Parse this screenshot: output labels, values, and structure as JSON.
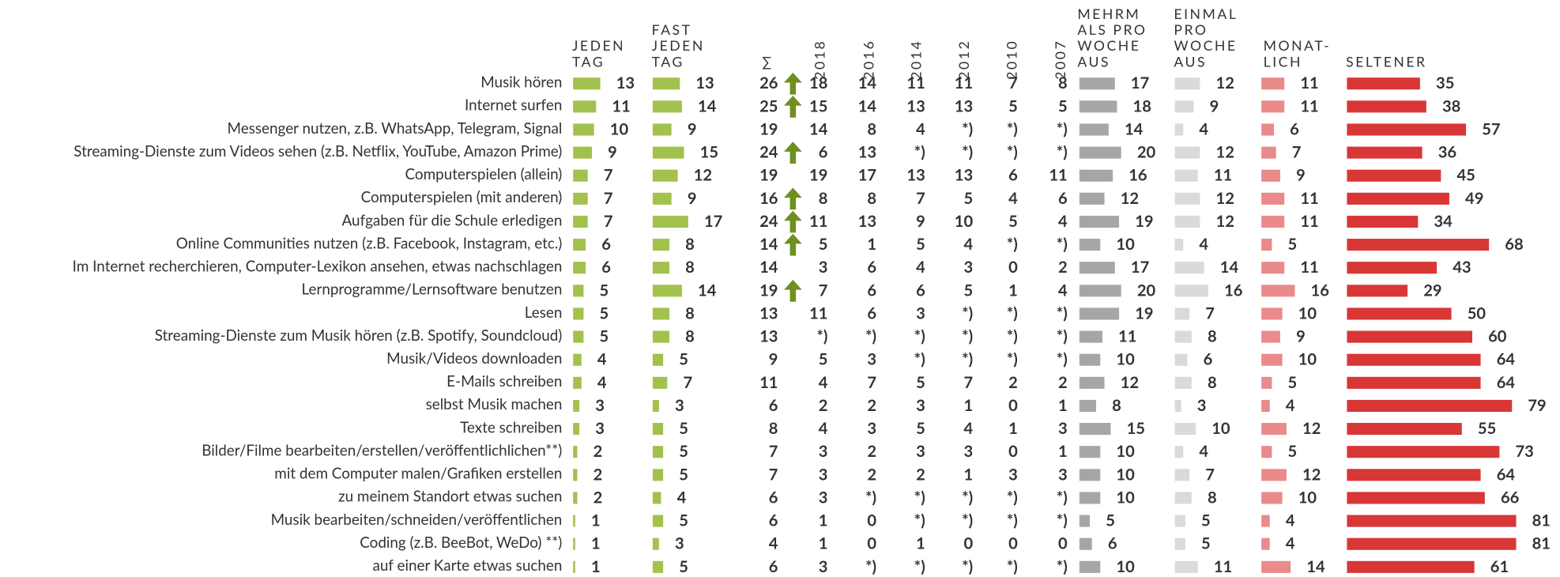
{
  "columns": [
    {
      "label": [
        "JEDEN",
        "TAG"
      ],
      "bar_color": "#a3c14d"
    },
    {
      "label": [
        "FAST",
        "JEDEN",
        "TAG"
      ],
      "bar_color": "#a3c14d"
    },
    {
      "label": [
        "∑"
      ]
    },
    {
      "label": [
        "2018"
      ],
      "vertical": true
    },
    {
      "label": [
        "2016"
      ],
      "vertical": true
    },
    {
      "label": [
        "2014"
      ],
      "vertical": true
    },
    {
      "label": [
        "2012"
      ],
      "vertical": true
    },
    {
      "label": [
        "2010"
      ],
      "vertical": true
    },
    {
      "label": [
        "2007"
      ],
      "vertical": true
    },
    {
      "label": [
        "MEHRM",
        "ALS PRO",
        "WOCHE",
        "AUS"
      ],
      "bar_color": "#a6a6a6"
    },
    {
      "label": [
        "EINMAL",
        "PRO",
        "WOCHE",
        "AUS"
      ],
      "bar_color": "#dadada"
    },
    {
      "label": [
        "MONAT-",
        "LICH"
      ],
      "bar_color": "#ea8a8a"
    },
    {
      "label": [
        "SELTENER"
      ],
      "bar_color": "#d93636"
    }
  ],
  "rows": [
    {
      "label": "Musik hören",
      "arrow": true,
      "values": [
        13,
        13,
        26,
        18,
        14,
        11,
        11,
        7,
        8,
        17,
        12,
        11,
        35
      ]
    },
    {
      "label": "Internet surfen",
      "arrow": true,
      "values": [
        11,
        14,
        25,
        15,
        14,
        13,
        13,
        5,
        5,
        18,
        9,
        11,
        38
      ]
    },
    {
      "label": "Messenger nutzen, z.B. WhatsApp, Telegram, Signal",
      "arrow": false,
      "values": [
        10,
        9,
        19,
        14,
        8,
        4,
        "*)",
        "*)",
        "*)",
        14,
        4,
        6,
        57
      ]
    },
    {
      "label": "Streaming-Dienste zum Videos sehen (z.B. Netflix, YouTube, Amazon Prime)",
      "arrow": true,
      "values": [
        9,
        15,
        24,
        6,
        13,
        "*)",
        "*)",
        "*)",
        "*)",
        20,
        12,
        7,
        36
      ]
    },
    {
      "label": "Computerspielen (allein)",
      "arrow": false,
      "values": [
        7,
        12,
        19,
        19,
        17,
        13,
        13,
        6,
        11,
        16,
        11,
        9,
        45
      ]
    },
    {
      "label": "Computerspielen (mit anderen)",
      "arrow": true,
      "values": [
        7,
        9,
        16,
        8,
        8,
        7,
        5,
        4,
        6,
        12,
        12,
        11,
        49
      ]
    },
    {
      "label": "Aufgaben für die Schule erledigen",
      "arrow": true,
      "values": [
        7,
        17,
        24,
        11,
        13,
        9,
        10,
        5,
        4,
        19,
        12,
        11,
        34
      ]
    },
    {
      "label": "Online Communities nutzen (z.B. Facebook, Instagram, etc.)",
      "arrow": true,
      "values": [
        6,
        8,
        14,
        5,
        1,
        5,
        4,
        "*)",
        "*)",
        10,
        4,
        5,
        68
      ]
    },
    {
      "label": "Im Internet recherchieren, Computer-Lexikon ansehen, etwas nachschlagen",
      "arrow": false,
      "values": [
        6,
        8,
        14,
        3,
        6,
        4,
        3,
        0,
        2,
        17,
        14,
        11,
        43
      ]
    },
    {
      "label": "Lernprogramme/Lernsoftware benutzen",
      "arrow": true,
      "values": [
        5,
        14,
        19,
        7,
        6,
        6,
        5,
        1,
        4,
        20,
        16,
        16,
        29
      ]
    },
    {
      "label": "Lesen",
      "arrow": false,
      "values": [
        5,
        8,
        13,
        11,
        6,
        3,
        "*)",
        "*)",
        "*)",
        19,
        7,
        10,
        50
      ]
    },
    {
      "label": "Streaming-Dienste zum Musik hören (z.B. Spotify, Soundcloud)",
      "arrow": false,
      "values": [
        5,
        8,
        13,
        "*)",
        "*)",
        "*)",
        "*)",
        "*)",
        "*)",
        11,
        8,
        9,
        60
      ]
    },
    {
      "label": "Musik/Videos downloaden",
      "arrow": false,
      "values": [
        4,
        5,
        9,
        5,
        3,
        "*)",
        "*)",
        "*)",
        "*)",
        10,
        6,
        10,
        64
      ]
    },
    {
      "label": "E-Mails schreiben",
      "arrow": false,
      "values": [
        4,
        7,
        11,
        4,
        7,
        5,
        7,
        2,
        2,
        12,
        8,
        5,
        64
      ]
    },
    {
      "label": "selbst Musik machen",
      "arrow": false,
      "values": [
        3,
        3,
        6,
        2,
        2,
        3,
        1,
        0,
        1,
        8,
        3,
        4,
        79
      ]
    },
    {
      "label": "Texte schreiben",
      "arrow": false,
      "values": [
        3,
        5,
        8,
        4,
        3,
        5,
        4,
        1,
        3,
        15,
        10,
        12,
        55
      ]
    },
    {
      "label": "Bilder/Filme bearbeiten/erstellen/veröffentlichlichen**)",
      "arrow": false,
      "values": [
        2,
        5,
        7,
        3,
        2,
        3,
        3,
        0,
        1,
        10,
        4,
        5,
        73
      ]
    },
    {
      "label": "mit dem Computer malen/Grafiken erstellen",
      "arrow": false,
      "values": [
        2,
        5,
        7,
        3,
        2,
        2,
        1,
        3,
        3,
        10,
        7,
        12,
        64
      ]
    },
    {
      "label": "zu meinem Standort etwas suchen",
      "arrow": false,
      "values": [
        2,
        4,
        6,
        3,
        "*)",
        "*)",
        "*)",
        "*)",
        "*)",
        10,
        8,
        10,
        66
      ]
    },
    {
      "label": "Musik bearbeiten/schneiden/veröffentlichen",
      "arrow": false,
      "values": [
        1,
        5,
        6,
        1,
        0,
        "*)",
        "*)",
        "*)",
        "*)",
        5,
        5,
        4,
        81
      ]
    },
    {
      "label": "Coding (z.B. BeeBot, WeDo) **)",
      "arrow": false,
      "values": [
        1,
        3,
        4,
        1,
        0,
        1,
        0,
        0,
        0,
        6,
        5,
        4,
        81
      ]
    },
    {
      "label": "auf einer Karte etwas suchen",
      "arrow": false,
      "values": [
        1,
        5,
        6,
        3,
        "*)",
        "*)",
        "*)",
        "*)",
        "*)",
        10,
        11,
        14,
        61
      ]
    }
  ]
}
